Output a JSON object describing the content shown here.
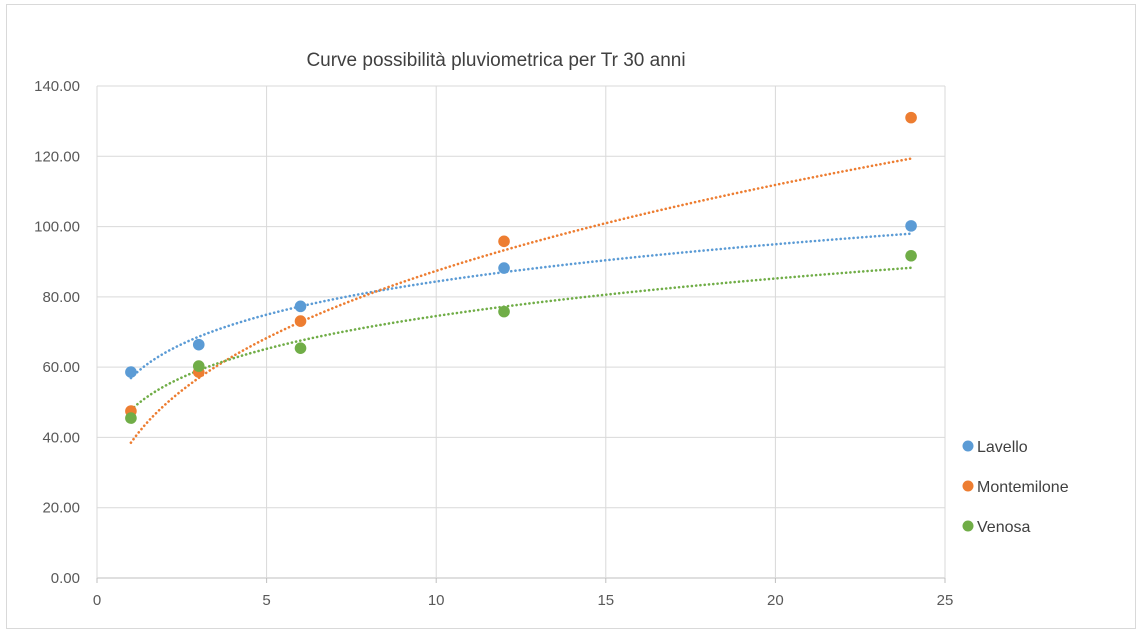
{
  "chart_data": {
    "type": "scatter",
    "title": "Curve possibilità pluviometrica per Tr 30 anni",
    "xlabel": "",
    "ylabel": "",
    "xlim": [
      0,
      25
    ],
    "ylim": [
      0,
      140
    ],
    "x_ticks": [
      0,
      5,
      10,
      15,
      20,
      25
    ],
    "y_ticks": [
      0,
      20,
      40,
      60,
      80,
      100,
      120,
      140
    ],
    "x_tick_labels": [
      "0",
      "5",
      "10",
      "15",
      "20",
      "25"
    ],
    "y_tick_labels": [
      "0.00",
      "20.00",
      "40.00",
      "60.00",
      "80.00",
      "100.00",
      "120.00",
      "140.00"
    ],
    "grid": true,
    "legend_position": "right",
    "trendline": "power (dotted)",
    "series": [
      {
        "name": "Lavello",
        "color": "#5b9bd5",
        "x": [
          1,
          3,
          6,
          12,
          24
        ],
        "y": [
          58.6,
          66.4,
          77.3,
          88.2,
          100.2
        ],
        "trend": {
          "a": 56.9,
          "b": 0.171
        }
      },
      {
        "name": "Montemilone",
        "color": "#ed7d31",
        "x": [
          1,
          3,
          6,
          12,
          24
        ],
        "y": [
          47.5,
          58.6,
          73.1,
          95.8,
          131.0
        ],
        "trend": {
          "a": 38.5,
          "b": 0.356
        }
      },
      {
        "name": "Venosa",
        "color": "#70ad47",
        "x": [
          1,
          3,
          6,
          12,
          24
        ],
        "y": [
          45.5,
          60.3,
          65.4,
          75.8,
          91.7
        ],
        "trend": {
          "a": 47.8,
          "b": 0.193
        }
      }
    ]
  }
}
